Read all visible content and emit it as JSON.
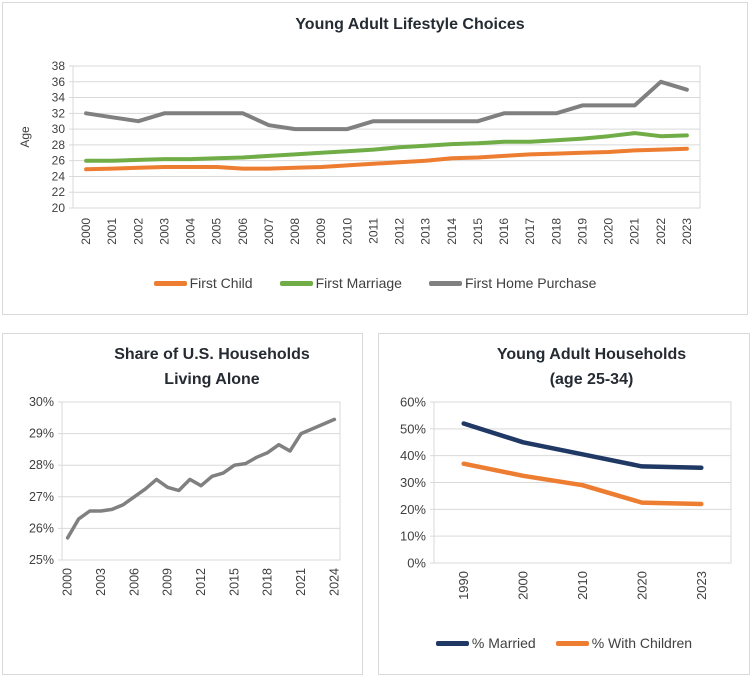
{
  "page": {
    "background": "#ffffff",
    "card_border": "#d9d9d9"
  },
  "colors": {
    "grid": "#d9d9d9",
    "axis_text": "#404040",
    "title_text": "#252b33",
    "orange": "#ED7D31",
    "green": "#70AD47",
    "gray": "#808080",
    "navy": "#1F3864"
  },
  "chart_data": [
    {
      "id": "lifestyle",
      "type": "line",
      "title": "Young Adult Lifestyle Choices",
      "xlabel": "",
      "ylabel": "Age",
      "ylim": [
        20,
        38
      ],
      "ytick_step": 2,
      "ytick_labels": [
        "20",
        "22",
        "24",
        "26",
        "28",
        "30",
        "32",
        "34",
        "36",
        "38"
      ],
      "grid": true,
      "legend_position": "bottom",
      "categories": [
        "2000",
        "2001",
        "2002",
        "2003",
        "2004",
        "2005",
        "2006",
        "2007",
        "2008",
        "2009",
        "2010",
        "2011",
        "2012",
        "2013",
        "2014",
        "2015",
        "2016",
        "2017",
        "2018",
        "2019",
        "2020",
        "2021",
        "2022",
        "2023"
      ],
      "xtick_every": 1,
      "series": [
        {
          "name": "First Child",
          "color": "#ED7D31",
          "values": [
            24.9,
            25.0,
            25.1,
            25.2,
            25.2,
            25.2,
            25.0,
            25.0,
            25.1,
            25.2,
            25.4,
            25.6,
            25.8,
            26.0,
            26.3,
            26.4,
            26.6,
            26.8,
            26.9,
            27.0,
            27.1,
            27.3,
            27.4,
            27.5
          ]
        },
        {
          "name": "First Marriage",
          "color": "#70AD47",
          "values": [
            26.0,
            26.0,
            26.1,
            26.2,
            26.2,
            26.3,
            26.4,
            26.6,
            26.8,
            27.0,
            27.2,
            27.4,
            27.7,
            27.9,
            28.1,
            28.2,
            28.4,
            28.4,
            28.6,
            28.8,
            29.1,
            29.5,
            29.1,
            29.2
          ]
        },
        {
          "name": "First Home Purchase",
          "color": "#808080",
          "values": [
            32,
            31.5,
            31,
            32,
            32,
            32,
            32,
            30.5,
            30,
            30,
            30,
            31,
            31,
            31,
            31,
            31,
            32,
            32,
            32,
            33,
            33,
            33,
            36,
            35
          ]
        }
      ]
    },
    {
      "id": "alone",
      "type": "line",
      "title": "Share of U.S. Households Living Alone",
      "title_lines": [
        "Share of U.S. Households",
        "Living Alone"
      ],
      "xlabel": "",
      "ylabel": "",
      "ylim": [
        25,
        30
      ],
      "ytick_step": 1,
      "ytick_labels": [
        "25%",
        "26%",
        "27%",
        "28%",
        "29%",
        "30%"
      ],
      "grid": true,
      "legend_position": "none",
      "categories": [
        "2000",
        "2001",
        "2002",
        "2003",
        "2004",
        "2005",
        "2006",
        "2007",
        "2008",
        "2009",
        "2010",
        "2011",
        "2012",
        "2013",
        "2014",
        "2015",
        "2016",
        "2017",
        "2018",
        "2019",
        "2020",
        "2021",
        "2022",
        "2023",
        "2024"
      ],
      "xtick_every": 3,
      "series": [
        {
          "name": "Share living alone",
          "color": "#808080",
          "values": [
            25.7,
            26.3,
            26.55,
            26.55,
            26.6,
            26.75,
            27.0,
            27.25,
            27.55,
            27.3,
            27.2,
            27.55,
            27.35,
            27.65,
            27.75,
            28.0,
            28.05,
            28.25,
            28.4,
            28.65,
            28.45,
            29.0,
            29.15,
            29.3,
            29.45
          ]
        }
      ]
    },
    {
      "id": "households",
      "type": "line",
      "title": "Young Adult Households (age 25-34)",
      "title_lines": [
        "Young Adult Households",
        "(age 25-34)"
      ],
      "xlabel": "",
      "ylabel": "",
      "ylim": [
        0,
        60
      ],
      "ytick_step": 10,
      "ytick_labels": [
        "0%",
        "10%",
        "20%",
        "30%",
        "40%",
        "50%",
        "60%"
      ],
      "grid": true,
      "legend_position": "bottom",
      "categories": [
        "1990",
        "2000",
        "2010",
        "2020",
        "2023"
      ],
      "xtick_every": 1,
      "series": [
        {
          "name": "% Married",
          "color": "#1F3864",
          "values": [
            52,
            45,
            40.5,
            36,
            35.5
          ]
        },
        {
          "name": "% With Children",
          "color": "#ED7D31",
          "values": [
            37,
            32.5,
            29,
            22.5,
            22
          ]
        }
      ]
    }
  ]
}
